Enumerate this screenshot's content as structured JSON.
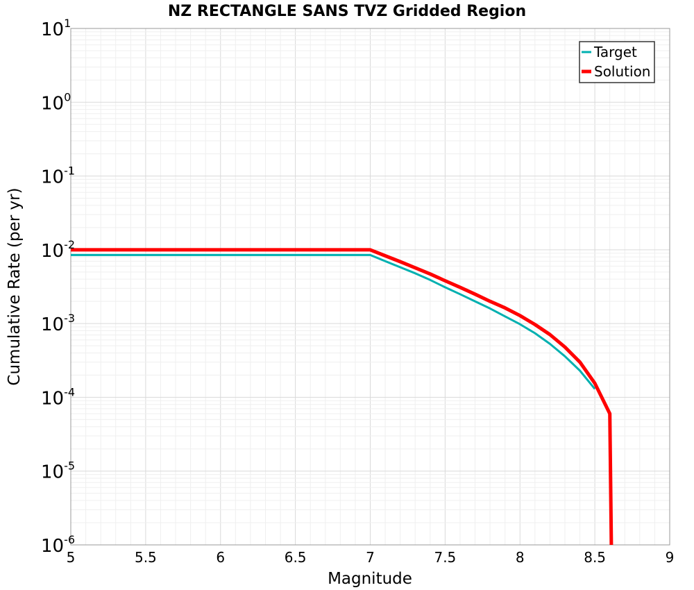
{
  "chart_data": {
    "type": "line",
    "title": "NZ RECTANGLE SANS TVZ Gridded Region",
    "xlabel": "Magnitude",
    "ylabel": "Cumulative Rate (per yr)",
    "xlim": [
      5,
      9
    ],
    "ylim": [
      1e-06,
      10
    ],
    "yscale": "log",
    "x_ticks": [
      5,
      5.5,
      6,
      6.5,
      7,
      7.5,
      8,
      8.5,
      9
    ],
    "x_tick_labels": [
      "5",
      "5.5",
      "6",
      "6.5",
      "7",
      "7.5",
      "8",
      "8.5",
      "9"
    ],
    "y_tick_exponents": [
      -6,
      -5,
      -4,
      -3,
      -2,
      -1,
      0,
      1
    ],
    "y_tick_base": "10",
    "grid": true,
    "legend_position": "top-right",
    "series": [
      {
        "name": "Target",
        "color": "#00b0b0",
        "x": [
          5.0,
          5.5,
          6.0,
          6.5,
          7.0,
          7.1,
          7.2,
          7.3,
          7.4,
          7.5,
          7.6,
          7.7,
          7.8,
          7.9,
          8.0,
          8.1,
          8.2,
          8.3,
          8.4,
          8.5
        ],
        "y": [
          0.0085,
          0.0085,
          0.0085,
          0.0085,
          0.0085,
          0.007,
          0.0058,
          0.0048,
          0.0039,
          0.0031,
          0.0025,
          0.002,
          0.0016,
          0.00125,
          0.00098,
          0.00074,
          0.00053,
          0.00036,
          0.00023,
          0.00013
        ]
      },
      {
        "name": "Solution",
        "color": "#ff0000",
        "x": [
          5.0,
          5.5,
          6.0,
          6.5,
          7.0,
          7.1,
          7.2,
          7.3,
          7.4,
          7.5,
          7.6,
          7.7,
          7.8,
          7.9,
          8.0,
          8.1,
          8.2,
          8.3,
          8.4,
          8.5,
          8.6,
          8.61
        ],
        "y": [
          0.01,
          0.01,
          0.01,
          0.01,
          0.01,
          0.0083,
          0.0069,
          0.0057,
          0.0047,
          0.0038,
          0.0031,
          0.0025,
          0.002,
          0.00163,
          0.00128,
          0.00097,
          0.00071,
          0.00048,
          0.0003,
          0.000155,
          6e-05,
          1e-06
        ]
      }
    ]
  }
}
